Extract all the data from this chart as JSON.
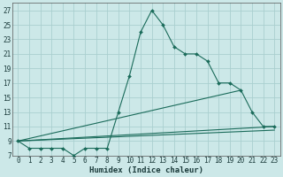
{
  "xlabel": "Humidex (Indice chaleur)",
  "bg_color": "#cce8e8",
  "grid_color": "#aacfcf",
  "line_color": "#1a6b5a",
  "line1": {
    "x": [
      0,
      1,
      2,
      3,
      4,
      5,
      6,
      7,
      8,
      9,
      10,
      11,
      12,
      13,
      14,
      15,
      16,
      17,
      18,
      19,
      20,
      21,
      22,
      23
    ],
    "y": [
      9,
      8,
      8,
      8,
      8,
      7,
      8,
      8,
      8,
      13,
      18,
      24,
      27,
      25,
      22,
      21,
      21,
      20,
      17,
      17,
      16,
      13,
      11,
      11
    ]
  },
  "line2": {
    "x": [
      0,
      23
    ],
    "y": [
      9,
      11
    ]
  },
  "line3": {
    "x": [
      0,
      20
    ],
    "y": [
      9,
      16
    ]
  },
  "line4": {
    "x": [
      0,
      23
    ],
    "y": [
      9,
      10.5
    ]
  },
  "xlim": [
    -0.5,
    23.5
  ],
  "ylim": [
    7,
    28
  ],
  "yticks": [
    7,
    9,
    11,
    13,
    15,
    17,
    19,
    21,
    23,
    25,
    27
  ],
  "xticks": [
    0,
    1,
    2,
    3,
    4,
    5,
    6,
    7,
    8,
    9,
    10,
    11,
    12,
    13,
    14,
    15,
    16,
    17,
    18,
    19,
    20,
    21,
    22,
    23
  ],
  "xlabel_fontsize": 6.5,
  "tick_fontsize": 5.5,
  "lw": 0.8,
  "marker_size": 2.0
}
